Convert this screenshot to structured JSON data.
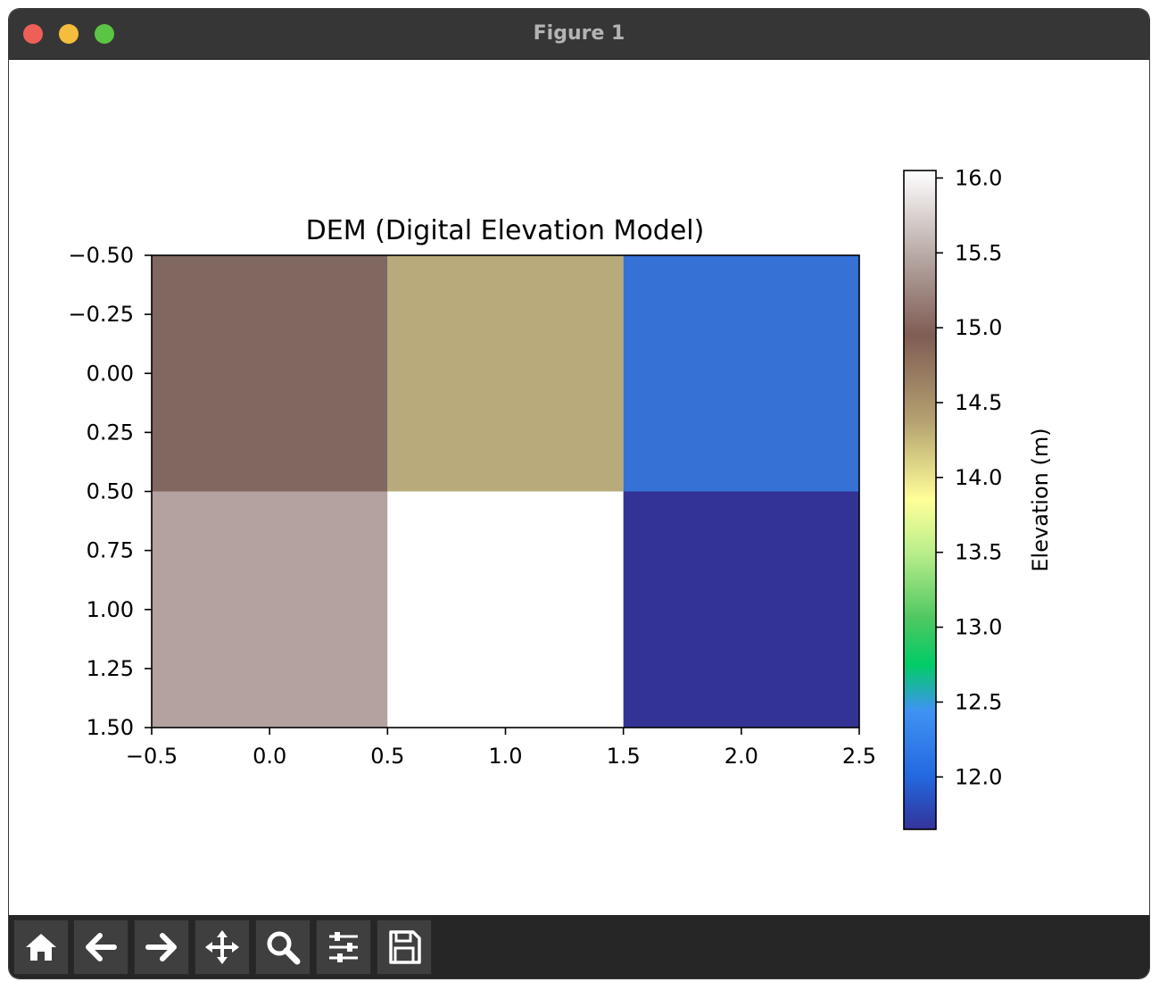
{
  "window": {
    "title": "Figure 1"
  },
  "toolbar": {
    "buttons": [
      {
        "name": "home-button",
        "icon": "home-icon"
      },
      {
        "name": "back-button",
        "icon": "arrow-left-icon"
      },
      {
        "name": "forward-button",
        "icon": "arrow-right-icon"
      },
      {
        "name": "pan-button",
        "icon": "move-icon"
      },
      {
        "name": "zoom-button",
        "icon": "magnifier-icon"
      },
      {
        "name": "configure-subplots-button",
        "icon": "sliders-icon"
      },
      {
        "name": "save-button",
        "icon": "floppy-disk-icon"
      }
    ]
  },
  "chart_data": {
    "type": "heatmap",
    "title": "DEM (Digital Elevation Model)",
    "xlabel": "",
    "ylabel": "",
    "xlim": [
      -0.5,
      2.5
    ],
    "ylim": [
      1.5,
      -0.5
    ],
    "y_inverted": true,
    "x_ticks": [
      "−0.5",
      "0.0",
      "0.5",
      "1.0",
      "1.5",
      "2.0",
      "2.5"
    ],
    "x_tick_values": [
      -0.5,
      0.0,
      0.5,
      1.0,
      1.5,
      2.0,
      2.5
    ],
    "y_ticks": [
      "−0.50",
      "−0.25",
      "0.00",
      "0.25",
      "0.50",
      "0.75",
      "1.00",
      "1.25",
      "1.50"
    ],
    "y_tick_values": [
      -0.5,
      -0.25,
      0.0,
      0.25,
      0.5,
      0.75,
      1.0,
      1.25,
      1.5
    ],
    "grid": false,
    "values": [
      [
        14.9,
        14.4,
        12.2
      ],
      [
        15.5,
        16.0,
        11.8
      ]
    ],
    "cell_colors": [
      [
        "#806760",
        "#b8aa7b",
        "#3671d5"
      ],
      [
        "#b3a29f",
        "#ffffff",
        "#333395"
      ]
    ],
    "colorbar": {
      "label": "Elevation (m)",
      "min": 11.65,
      "max": 16.05,
      "ticks": [
        "12.0",
        "12.5",
        "13.0",
        "13.5",
        "14.0",
        "14.5",
        "15.0",
        "15.5",
        "16.0"
      ],
      "tick_values": [
        12.0,
        12.5,
        13.0,
        13.5,
        14.0,
        14.5,
        15.0,
        15.5,
        16.0
      ],
      "colormap": "terrain"
    }
  }
}
